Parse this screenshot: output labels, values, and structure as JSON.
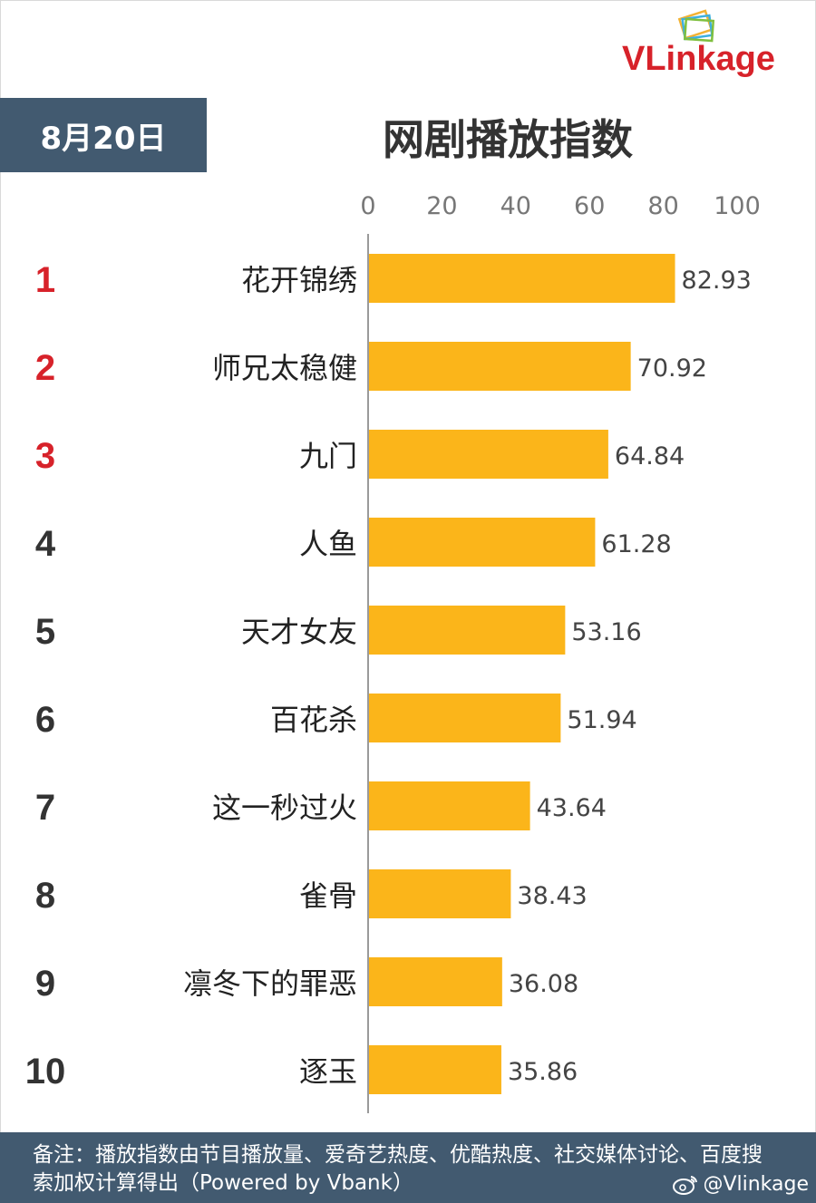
{
  "brand": {
    "name": "VLinkage"
  },
  "header": {
    "date": "8月20日",
    "title": "网剧播放指数"
  },
  "chart_data": {
    "type": "bar",
    "orientation": "horizontal",
    "title": "网剧播放指数",
    "xlim": [
      0,
      100
    ],
    "ticks": [
      0,
      20,
      40,
      60,
      80,
      100
    ],
    "grid": false,
    "rank_colors": {
      "top3": "#d7222a",
      "other": "#333333"
    },
    "bar_color": "#fbb51a",
    "ranks": [
      "1",
      "2",
      "3",
      "4",
      "5",
      "6",
      "7",
      "8",
      "9",
      "10"
    ],
    "categories": [
      "花开锦绣",
      "师兄太稳健",
      "九门",
      "人鱼",
      "天才女友",
      "百花杀",
      "这一秒过火",
      "雀骨",
      "凛冬下的罪恶",
      "逐玉"
    ],
    "values": [
      82.93,
      70.92,
      64.84,
      61.28,
      53.16,
      51.94,
      43.64,
      38.43,
      36.08,
      35.86
    ],
    "value_labels": [
      "82.93",
      "70.92",
      "64.84",
      "61.28",
      "53.16",
      "51.94",
      "43.64",
      "38.43",
      "36.08",
      "35.86"
    ]
  },
  "footer": {
    "note": "备注：播放指数由节目播放量、爱奇艺热度、优酷热度、社交媒体讨论、百度搜索加权计算得出（Powered by Vbank）",
    "weibo": "@Vlinkage"
  }
}
